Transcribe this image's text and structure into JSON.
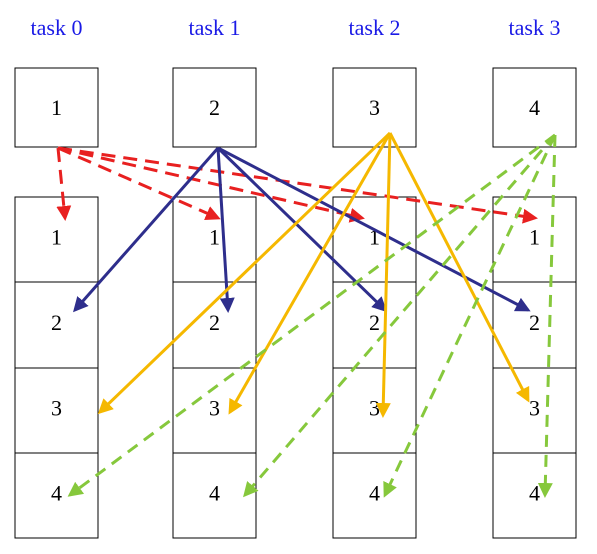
{
  "tasks": [
    {
      "label": "task 0",
      "send": "1",
      "recv": [
        "1",
        "2",
        "3",
        "4"
      ]
    },
    {
      "label": "task 1",
      "send": "2",
      "recv": [
        "1",
        "2",
        "3",
        "4"
      ]
    },
    {
      "label": "task 2",
      "send": "3",
      "recv": [
        "1",
        "2",
        "3",
        "4"
      ]
    },
    {
      "label": "task 3",
      "send": "4",
      "recv": [
        "1",
        "2",
        "3",
        "4"
      ]
    }
  ]
}
